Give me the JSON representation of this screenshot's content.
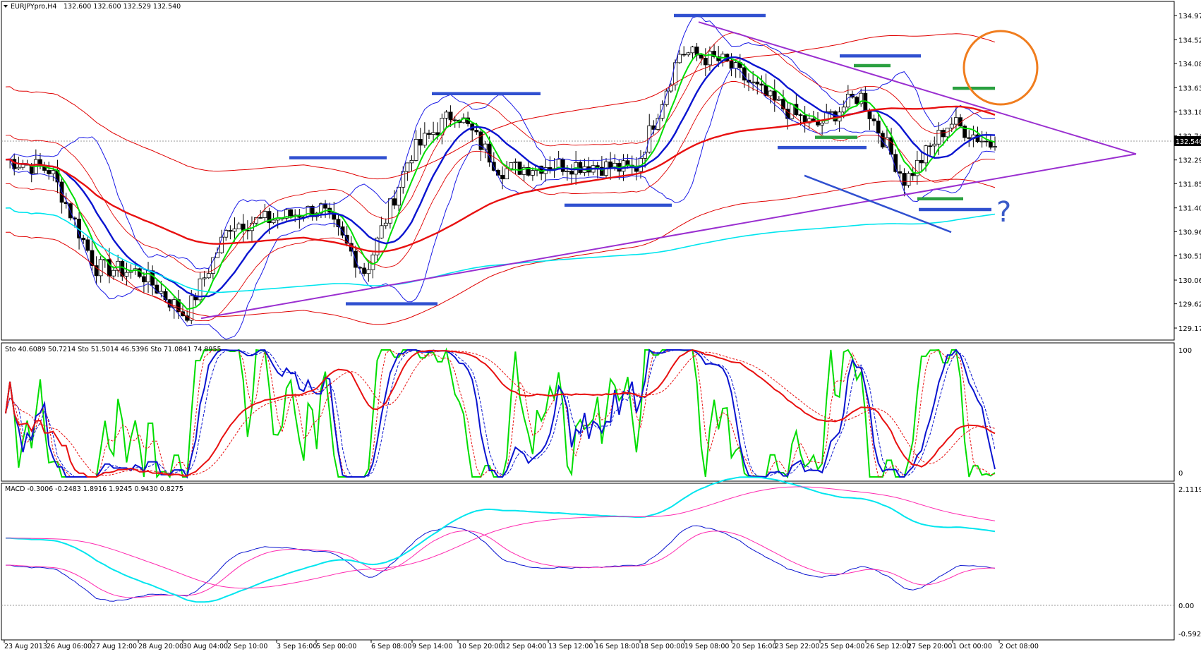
{
  "panels": {
    "main": {
      "header_symbol": "EURJPYpro,H4",
      "header_ohlc": "132.600 132.600 132.529 132.540",
      "current_price": "132.540",
      "yticks": [
        "134.970",
        "134.520",
        "134.080",
        "133.630",
        "133.180",
        "132.740",
        "132.290",
        "131.850",
        "131.400",
        "130.960",
        "130.510",
        "130.060",
        "129.620",
        "129.170"
      ],
      "annotation_text": "?"
    },
    "stoch": {
      "label": "Sto 40.6089 50.7214  Sto 51.5014 46.5396  Sto 71.0841 74.8955",
      "yticks": [
        "100",
        "0"
      ]
    },
    "macd": {
      "label": "MACD -0.3006 -0.2483 1.8916 1.9245 0.9430 0.8275",
      "yticks": [
        "2.1119",
        "0.00",
        "-0.5927"
      ]
    }
  },
  "xaxis": [
    "23 Aug 2013",
    "26 Aug 06:00",
    "27 Aug 12:00",
    "28 Aug 20:00",
    "30 Aug 04:00",
    "2 Sep 10:00",
    "3 Sep 16:00",
    "5 Sep 00:00",
    "6 Sep 08:00",
    "9 Sep 14:00",
    "10 Sep 20:00",
    "12 Sep 04:00",
    "13 Sep 12:00",
    "16 Sep 18:00",
    "18 Sep 00:00",
    "19 Sep 08:00",
    "20 Sep 16:00",
    "23 Sep 22:00",
    "25 Sep 04:00",
    "26 Sep 12:00",
    "27 Sep 20:00",
    "1 Oct 00:00",
    "2 Oct 08:00"
  ],
  "colors": {
    "bollinger": "#1a1ae6",
    "envelope": "#e00000",
    "ma_fast": "#00dd00",
    "ma_slow": "#0a14d0",
    "ma_long": "#e81010",
    "cyan": "#00e5ee",
    "trendline": "#9a2fd0",
    "level_blue": "#3050d0",
    "level_green": "#2aa040",
    "circle": "#f07d1e",
    "macd_pink": "#ff2ab0",
    "question": "#3a5bc8"
  },
  "chart_data": [
    {
      "type": "candlestick",
      "symbol": "EURJPYpro",
      "timeframe": "H4",
      "ylim": [
        129.17,
        134.97
      ],
      "approx_close_path": [
        {
          "date": "23 Aug 2013",
          "price": 132.3
        },
        {
          "date": "26 Aug 06:00",
          "price": 132.1
        },
        {
          "date": "27 Aug 12:00",
          "price": 130.3
        },
        {
          "date": "28 Aug 20:00",
          "price": 130.2
        },
        {
          "date": "30 Aug 04:00",
          "price": 129.4
        },
        {
          "date": "2 Sep 10:00",
          "price": 131.1
        },
        {
          "date": "3 Sep 16:00",
          "price": 131.2
        },
        {
          "date": "5 Sep 00:00",
          "price": 131.4
        },
        {
          "date": "6 Sep 08:00",
          "price": 130.2
        },
        {
          "date": "9 Sep 14:00",
          "price": 132.4
        },
        {
          "date": "10 Sep 20:00",
          "price": 133.2
        },
        {
          "date": "12 Sep 04:00",
          "price": 132.1
        },
        {
          "date": "13 Sep 12:00",
          "price": 132.2
        },
        {
          "date": "16 Sep 18:00",
          "price": 132.2
        },
        {
          "date": "18 Sep 00:00",
          "price": 132.1
        },
        {
          "date": "19 Sep 08:00",
          "price": 134.3
        },
        {
          "date": "20 Sep 16:00",
          "price": 134.1
        },
        {
          "date": "23 Sep 22:00",
          "price": 133.4
        },
        {
          "date": "25 Sep 04:00",
          "price": 132.9
        },
        {
          "date": "26 Sep 12:00",
          "price": 133.5
        },
        {
          "date": "27 Sep 20:00",
          "price": 131.9
        },
        {
          "date": "1 Oct 00:00",
          "price": 133.0
        },
        {
          "date": "2 Oct 08:00",
          "price": 132.54
        }
      ],
      "marked_levels": [
        134.97,
        134.22,
        133.52,
        132.87,
        132.33,
        131.45,
        129.62,
        132.71,
        132.52,
        133.18,
        131.57,
        133.62,
        134.04,
        131.37
      ],
      "last_price": 132.54
    },
    {
      "type": "line",
      "title": "Sto 40.6089 50.7214  Sto 51.5014 46.5396  Sto 71.0841 74.8955",
      "ylim": [
        0,
        100
      ],
      "last_values": [
        40.6089,
        50.7214,
        51.5014,
        46.5396,
        71.0841,
        74.8955
      ]
    },
    {
      "type": "line",
      "title": "MACD -0.3006 -0.2483 1.8916 1.9245 0.9430 0.8275",
      "ylim": [
        -0.5927,
        2.1119
      ],
      "last_values": [
        -0.3006,
        -0.2483,
        1.8916,
        1.9245,
        0.943,
        0.8275
      ]
    }
  ]
}
